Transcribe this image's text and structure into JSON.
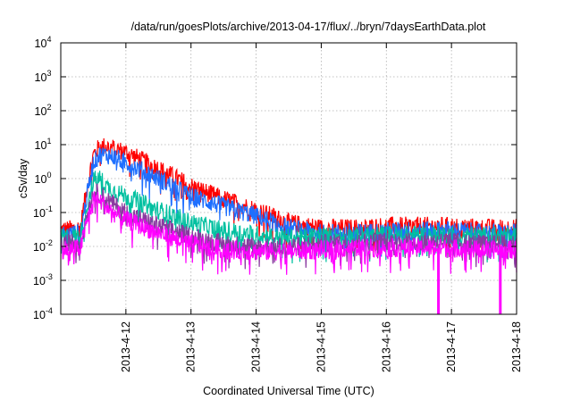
{
  "chart_data": {
    "type": "line",
    "title": "/data/run/goesPlots/archive/2013-04-17/flux/../bryn/7daysEarthData.plot",
    "xlabel": "Coordinated Universal Time (UTC)",
    "ylabel": "cSv/day",
    "y_scale": "log",
    "ylim": [
      0.0001,
      10000
    ],
    "xlim": [
      "2013-04-11",
      "2013-04-18"
    ],
    "x_ticks": [
      "2013-4-12",
      "2013-4-13",
      "2013-4-14",
      "2013-4-15",
      "2013-4-16",
      "2013-4-17",
      "2013-4-18"
    ],
    "y_ticks": [
      {
        "base": "10",
        "exp": "-4"
      },
      {
        "base": "10",
        "exp": "-3"
      },
      {
        "base": "10",
        "exp": "-2"
      },
      {
        "base": "10",
        "exp": "-1"
      },
      {
        "base": "10",
        "exp": "0"
      },
      {
        "base": "10",
        "exp": "1"
      },
      {
        "base": "10",
        "exp": "2"
      },
      {
        "base": "10",
        "exp": "3"
      },
      {
        "base": "10",
        "exp": "4"
      }
    ],
    "grid": true,
    "series": [
      {
        "color": "#ff0000",
        "x": [
          0,
          0.3,
          0.4,
          0.5,
          0.6,
          0.7,
          0.8,
          1.0,
          1.5,
          2.0,
          2.5,
          3.0,
          3.5,
          4.0,
          4.5,
          5.0,
          5.5,
          6.0,
          6.5,
          7.0
        ],
        "y": [
          0.03,
          0.035,
          0.5,
          5,
          9,
          9,
          8,
          6,
          2,
          0.6,
          0.25,
          0.12,
          0.05,
          0.035,
          0.035,
          0.04,
          0.04,
          0.04,
          0.035,
          0.035
        ]
      },
      {
        "color": "#1e6fff",
        "x": [
          0,
          0.3,
          0.4,
          0.5,
          0.6,
          0.7,
          0.8,
          1.0,
          1.5,
          2.0,
          2.5,
          3.0,
          3.5,
          4.0,
          4.5,
          5.0,
          5.5,
          6.0,
          6.5,
          7.0
        ],
        "y": [
          0.022,
          0.025,
          0.3,
          3,
          5,
          5,
          4.5,
          3,
          1,
          0.3,
          0.15,
          0.08,
          0.035,
          0.025,
          0.025,
          0.028,
          0.03,
          0.03,
          0.025,
          0.025
        ]
      },
      {
        "color": "#00c0a0",
        "x": [
          0,
          0.3,
          0.4,
          0.5,
          0.6,
          0.7,
          0.8,
          1.0,
          1.5,
          2.0,
          2.5,
          3.0,
          3.5,
          4.0,
          4.5,
          5.0,
          5.5,
          6.0,
          6.5,
          7.0
        ],
        "y": [
          0.018,
          0.02,
          0.15,
          0.9,
          1.0,
          0.6,
          0.45,
          0.3,
          0.12,
          0.05,
          0.03,
          0.022,
          0.018,
          0.02,
          0.02,
          0.022,
          0.022,
          0.022,
          0.02,
          0.02
        ]
      },
      {
        "color": "#8a3aa0",
        "x": [
          0,
          0.3,
          0.4,
          0.5,
          0.6,
          0.7,
          0.8,
          1.0,
          1.5,
          2.0,
          2.5,
          3.0,
          3.5,
          4.0,
          4.5,
          5.0,
          5.5,
          6.0,
          6.5,
          7.0
        ],
        "y": [
          0.012,
          0.014,
          0.08,
          0.4,
          0.35,
          0.25,
          0.18,
          0.1,
          0.04,
          0.02,
          0.012,
          0.01,
          0.01,
          0.012,
          0.013,
          0.014,
          0.014,
          0.014,
          0.012,
          0.012
        ]
      },
      {
        "color": "#ff00ff",
        "x": [
          0,
          0.3,
          0.4,
          0.5,
          0.6,
          0.7,
          0.8,
          1.0,
          1.5,
          2.0,
          2.5,
          3.0,
          3.5,
          4.0,
          4.5,
          5.0,
          5.5,
          6.0,
          6.5,
          7.0
        ],
        "y": [
          0.008,
          0.009,
          0.05,
          0.25,
          0.22,
          0.15,
          0.1,
          0.06,
          0.025,
          0.012,
          0.008,
          0.007,
          0.007,
          0.008,
          0.009,
          0.009,
          0.009,
          0.009,
          0.008,
          0.008
        ],
        "dips": [
          5.8,
          6.75
        ]
      }
    ]
  }
}
